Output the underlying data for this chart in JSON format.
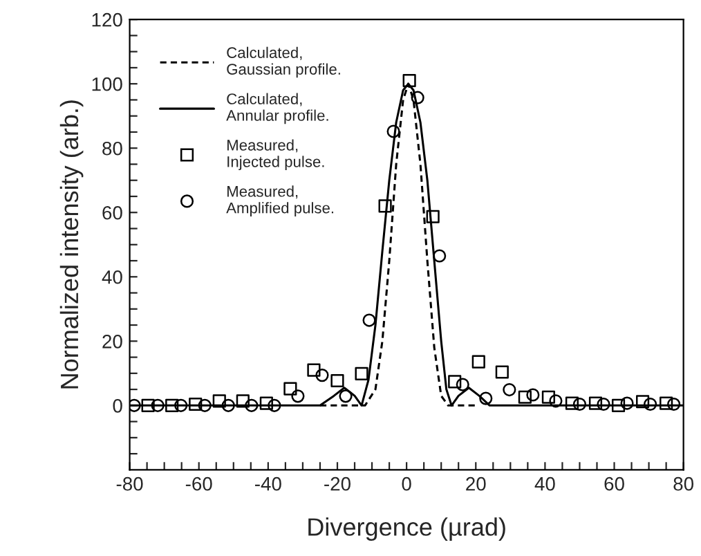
{
  "chart_data": {
    "type": "line",
    "xlabel": "Divergence (µrad)",
    "ylabel": "Normalized intensity (arb.)",
    "xlim": [
      -80,
      80
    ],
    "ylim": [
      -20,
      120
    ],
    "xticks": [
      -80,
      {
        "value": -75,
        "label": null
      },
      {
        "value": -70,
        "label": null
      },
      {
        "value": -65,
        "label": null
      },
      -60,
      {
        "value": -55,
        "label": null
      },
      {
        "value": -50,
        "label": null
      },
      {
        "value": -45,
        "label": null
      },
      -40,
      {
        "value": -35,
        "label": null
      },
      {
        "value": -30,
        "label": null
      },
      {
        "value": -25,
        "label": null
      },
      -20,
      {
        "value": -15,
        "label": null
      },
      {
        "value": -10,
        "label": null
      },
      {
        "value": -5,
        "label": null
      },
      0,
      {
        "value": 5,
        "label": null
      },
      {
        "value": 10,
        "label": null
      },
      {
        "value": 15,
        "label": null
      },
      20,
      {
        "value": 25,
        "label": null
      },
      {
        "value": 30,
        "label": null
      },
      {
        "value": 35,
        "label": null
      },
      40,
      {
        "value": 45,
        "label": null
      },
      {
        "value": 50,
        "label": null
      },
      {
        "value": 55,
        "label": null
      },
      60,
      {
        "value": 65,
        "label": null
      },
      {
        "value": 70,
        "label": null
      },
      {
        "value": 75,
        "label": null
      },
      80
    ],
    "yticks": [
      {
        "value": -15,
        "label": null
      },
      {
        "value": -10,
        "label": null
      },
      {
        "value": -5,
        "label": null
      },
      0,
      {
        "value": 5,
        "label": null
      },
      {
        "value": 10,
        "label": null
      },
      {
        "value": 15,
        "label": null
      },
      20,
      {
        "value": 25,
        "label": null
      },
      {
        "value": 30,
        "label": null
      },
      {
        "value": 35,
        "label": null
      },
      40,
      {
        "value": 45,
        "label": null
      },
      {
        "value": 50,
        "label": null
      },
      {
        "value": 55,
        "label": null
      },
      60,
      {
        "value": 65,
        "label": null
      },
      {
        "value": 70,
        "label": null
      },
      {
        "value": 75,
        "label": null
      },
      80,
      {
        "value": 85,
        "label": null
      },
      {
        "value": 90,
        "label": null
      },
      {
        "value": 95,
        "label": null
      },
      100,
      {
        "value": 105,
        "label": null
      },
      {
        "value": 110,
        "label": null
      },
      {
        "value": 115,
        "label": null
      },
      120
    ],
    "grid": false,
    "legend": "top left",
    "series": [
      {
        "name": "Calculated,\nGaussian profile.",
        "type": "line",
        "line_style": "dashed",
        "marker": "none",
        "color": "#000000",
        "x": [
          -25,
          -12,
          -9,
          -7,
          -5,
          -3,
          -1,
          0.5,
          2,
          4,
          6,
          8,
          10,
          12,
          20
        ],
        "values": [
          0,
          0,
          5,
          20,
          45,
          75,
          95,
          100,
          95,
          75,
          45,
          18,
          3,
          0,
          0
        ]
      },
      {
        "name": "Calculated,\nAnnular profile.",
        "type": "line",
        "line_style": "solid",
        "marker": "none",
        "color": "#000000",
        "x": [
          -80,
          -25,
          -21,
          -18,
          -15,
          -13,
          -11,
          -9,
          -7,
          -5,
          -3,
          -1,
          0.5,
          2,
          4,
          6,
          8,
          10,
          11.5,
          13,
          15,
          18,
          21,
          24,
          80
        ],
        "values": [
          0,
          0,
          3,
          5.5,
          3,
          0,
          8,
          25,
          48,
          70,
          88,
          98,
          100,
          98,
          88,
          70,
          45,
          20,
          5,
          0,
          3,
          5.5,
          3,
          0,
          0
        ]
      },
      {
        "name": "Measured,\nInjected pulse.",
        "type": "scatter",
        "marker": "square",
        "color": "#000000",
        "x": [
          -74.7,
          -67.8,
          -61,
          -54.1,
          -47.3,
          -40.5,
          -33.6,
          -26.8,
          -20,
          -13,
          -6.2,
          0.8,
          7.6,
          13.9,
          20.8,
          27.6,
          34.2,
          41,
          47.8,
          54.6,
          61.2,
          68.2,
          75
        ],
        "values": [
          0,
          0,
          0.4,
          1.4,
          1.4,
          0.7,
          5.2,
          11,
          7.7,
          9.9,
          62,
          101,
          58.7,
          7.4,
          13.6,
          10.4,
          2.6,
          2.6,
          0.7,
          0.7,
          0,
          1.2,
          0.7
        ]
      },
      {
        "name": "Measured,\nAmplified pulse.",
        "type": "scatter",
        "marker": "circle",
        "color": "#000000",
        "x": [
          -78.7,
          -71.9,
          -65.2,
          -58.3,
          -51.5,
          -44.8,
          -38.2,
          -31.4,
          -24.4,
          -17.6,
          -10.8,
          -3.8,
          3.2,
          9.5,
          16.2,
          22.9,
          29.7,
          36.5,
          43.1,
          50,
          56.9,
          63.7,
          70.4,
          77.2
        ],
        "values": [
          0,
          0,
          0,
          0,
          0,
          0,
          0,
          2.9,
          9.4,
          2.9,
          26.5,
          85.2,
          95.7,
          46.5,
          6.5,
          2.2,
          4.9,
          3.3,
          1.4,
          0.4,
          0.4,
          0.7,
          0.4,
          0.4
        ]
      }
    ]
  }
}
